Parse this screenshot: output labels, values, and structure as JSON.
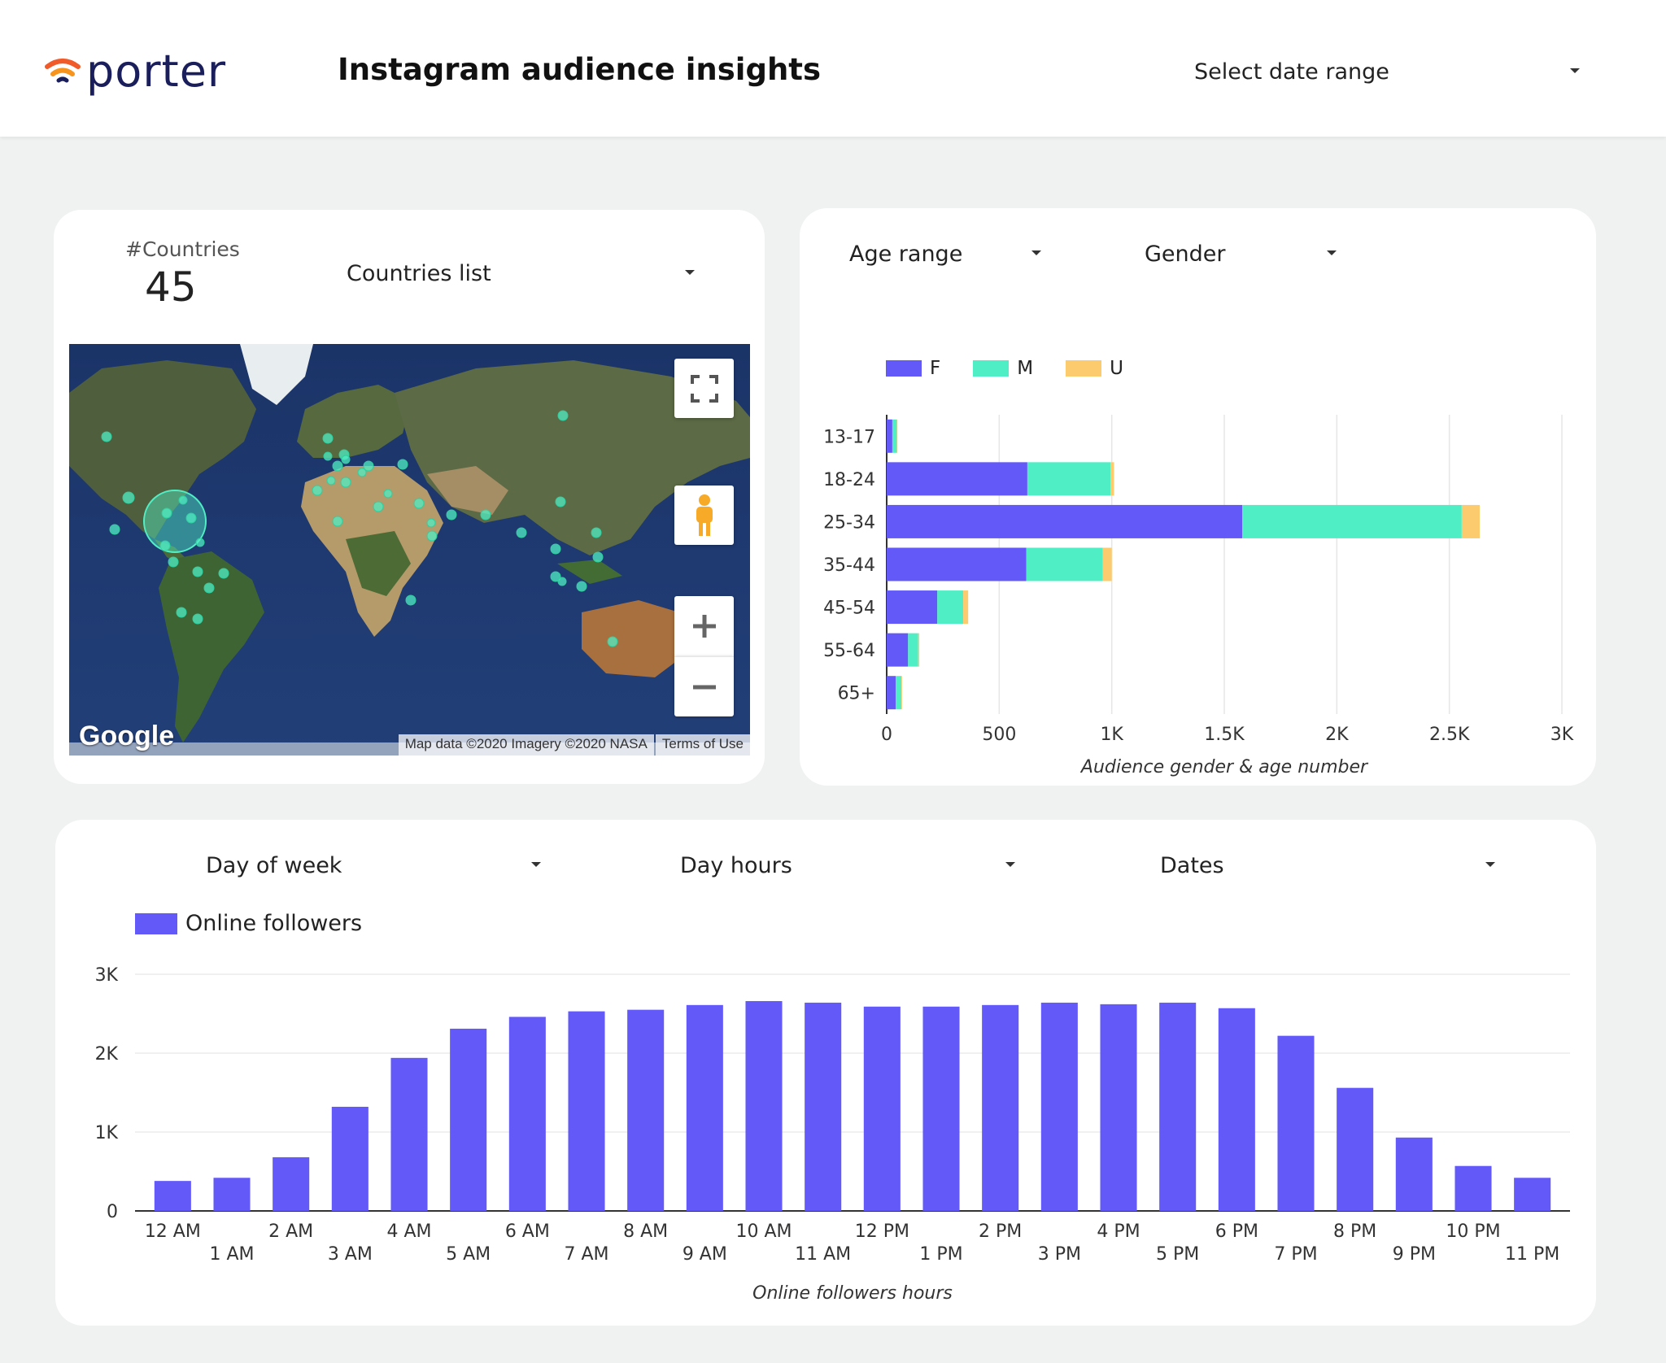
{
  "header": {
    "logo_text": "porter",
    "title": "Instagram audience insights",
    "date_range_label": "Select date range"
  },
  "countries_card": {
    "scorecard_label": "#Countries",
    "scorecard_value": "45",
    "countries_dropdown_label": "Countries list",
    "map": {
      "google_label": "Google",
      "attribution": "Map data ©2020 Imagery ©2020 NASA",
      "terms": "Terms of Use",
      "controls": [
        "fullscreen-icon",
        "pegman-icon",
        "zoom-in-icon",
        "zoom-out-icon"
      ]
    }
  },
  "age_card": {
    "age_dropdown_label": "Age range",
    "gender_dropdown_label": "Gender",
    "legend": [
      {
        "name": "F",
        "color": "#6359f8"
      },
      {
        "name": "M",
        "color": "#50eec4"
      },
      {
        "name": "U",
        "color": "#fbcb6d"
      }
    ]
  },
  "hours_card": {
    "day_of_week_label": "Day of week",
    "day_hours_label": "Day hours",
    "dates_label": "Dates",
    "legend_label": "Online followers",
    "legend_color": "#6359f8"
  },
  "chart_data": [
    {
      "type": "bar",
      "orientation": "horizontal",
      "stacked": true,
      "categories": [
        "13-17",
        "18-24",
        "25-34",
        "35-44",
        "45-54",
        "55-64",
        "65+"
      ],
      "series": [
        {
          "name": "F",
          "color": "#6359f8",
          "values": [
            25,
            625,
            1580,
            620,
            225,
            95,
            40
          ]
        },
        {
          "name": "M",
          "color": "#50eec4",
          "values": [
            20,
            370,
            975,
            340,
            115,
            45,
            25
          ]
        },
        {
          "name": "U",
          "color": "#fbcb6d",
          "values": [
            2,
            15,
            80,
            40,
            22,
            5,
            3
          ]
        }
      ],
      "title": "",
      "xlabel": "Audience gender & age number",
      "ylabel": "",
      "xlim": [
        0,
        3000
      ],
      "xticks": [
        "0",
        "500",
        "1K",
        "1.5K",
        "2K",
        "2.5K",
        "3K"
      ],
      "grid": true,
      "legend": "top-left"
    },
    {
      "type": "bar",
      "categories": [
        "12 AM",
        "1 AM",
        "2 AM",
        "3 AM",
        "4 AM",
        "5 AM",
        "6 AM",
        "7 AM",
        "8 AM",
        "9 AM",
        "10 AM",
        "11 AM",
        "12 PM",
        "1 PM",
        "2 PM",
        "3 PM",
        "4 PM",
        "5 PM",
        "6 PM",
        "7 PM",
        "8 PM",
        "9 PM",
        "10 PM",
        "11 PM"
      ],
      "series": [
        {
          "name": "Online followers",
          "color": "#6359f8",
          "values": [
            380,
            420,
            680,
            1320,
            1940,
            2310,
            2460,
            2530,
            2550,
            2610,
            2660,
            2640,
            2590,
            2590,
            2610,
            2640,
            2620,
            2640,
            2570,
            2220,
            1560,
            930,
            570,
            420
          ]
        }
      ],
      "title": "",
      "xlabel": "Online followers hours",
      "ylabel": "",
      "ylim": [
        0,
        3000
      ],
      "yticks": [
        "0",
        "1K",
        "2K",
        "3K"
      ],
      "grid": true,
      "legend": "top-left"
    }
  ]
}
